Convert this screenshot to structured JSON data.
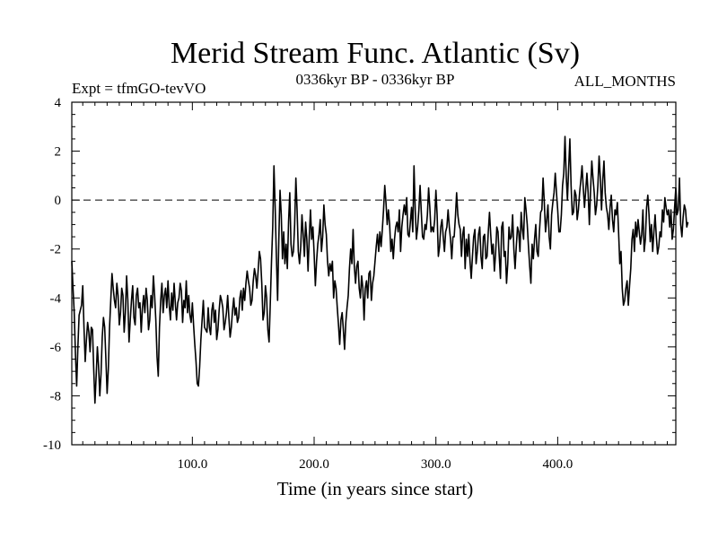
{
  "chart_data": {
    "type": "line",
    "title": "Merid Stream Func. Atlantic (Sv)",
    "subtitle_left": "Expt = tfmGO-tevVO",
    "subtitle_center": "0336kyr BP - 0336kyr BP",
    "subtitle_right": "ALL_MONTHS",
    "xlabel": "Time (in years since start)",
    "ylabel": "",
    "xlim": [
      1,
      497
    ],
    "ylim": [
      -10,
      4
    ],
    "x_ticks": [
      100,
      200,
      300,
      400
    ],
    "x_tick_labels": [
      "100.0",
      "200.0",
      "300.0",
      "400.0"
    ],
    "y_ticks": [
      4,
      2,
      0,
      -2,
      -4,
      -6,
      -8,
      -10
    ],
    "y_tick_labels": [
      "4",
      "2",
      "0",
      "-2",
      "-4",
      "-6",
      "-8",
      "-10"
    ],
    "reference_line": {
      "y": 0,
      "style": "dashed"
    },
    "series": [
      {
        "name": "Merid Stream Func. Atlantic",
        "x_start": 1,
        "x_step": 1,
        "values": [
          -2.5,
          -3.6,
          -4.6,
          -6.3,
          -7.6,
          -6.0,
          -4.7,
          -4.5,
          -4.3,
          -3.5,
          -5.2,
          -6.6,
          -5.7,
          -5.0,
          -5.4,
          -6.2,
          -5.2,
          -5.3,
          -6.9,
          -8.3,
          -7.2,
          -6.0,
          -6.8,
          -8.0,
          -7.1,
          -5.6,
          -4.8,
          -5.2,
          -6.5,
          -7.9,
          -6.9,
          -5.2,
          -4.1,
          -3.0,
          -3.6,
          -4.1,
          -4.4,
          -3.4,
          -3.9,
          -5.1,
          -4.6,
          -3.6,
          -3.9,
          -5.4,
          -4.6,
          -3.1,
          -4.1,
          -5.8,
          -4.9,
          -4.1,
          -3.5,
          -4.8,
          -5.1,
          -3.9,
          -3.6,
          -4.4,
          -4.2,
          -5.4,
          -4.4,
          -3.9,
          -4.6,
          -3.6,
          -4.1,
          -5.3,
          -4.9,
          -3.9,
          -4.4,
          -3.1,
          -3.9,
          -4.9,
          -6.4,
          -7.2,
          -5.2,
          -4.1,
          -3.4,
          -4.6,
          -3.9,
          -3.6,
          -4.4,
          -3.3,
          -4.3,
          -4.9,
          -3.8,
          -4.5,
          -3.4,
          -4.2,
          -4.9,
          -4.2,
          -4.0,
          -3.4,
          -3.7,
          -5.0,
          -4.1,
          -4.4,
          -3.3,
          -4.6,
          -3.9,
          -4.7,
          -5.0,
          -4.2,
          -5.1,
          -5.9,
          -6.6,
          -7.5,
          -7.6,
          -6.8,
          -5.7,
          -4.9,
          -4.1,
          -5.2,
          -5.3,
          -5.4,
          -4.4,
          -5.2,
          -5.5,
          -4.5,
          -4.2,
          -5.0,
          -4.5,
          -5.7,
          -5.3,
          -4.5,
          -3.9,
          -4.1,
          -4.4,
          -5.3,
          -5.0,
          -4.6,
          -3.9,
          -4.8,
          -5.6,
          -5.2,
          -4.5,
          -4.0,
          -4.7,
          -4.4,
          -5.0,
          -4.8,
          -4.0,
          -3.7,
          -4.5,
          -3.6,
          -4.1,
          -3.4,
          -2.9,
          -3.3,
          -3.6,
          -4.3,
          -4.1,
          -3.3,
          -2.8,
          -3.1,
          -3.6,
          -2.9,
          -2.1,
          -2.4,
          -3.4,
          -4.9,
          -4.6,
          -3.5,
          -4.0,
          -5.3,
          -5.8,
          -4.2,
          -2.5,
          -1.1,
          1.4,
          -0.3,
          -2.3,
          -4.1,
          -1.6,
          0.4,
          -0.6,
          -2.4,
          -1.3,
          -2.6,
          -1.8,
          -2.8,
          -0.9,
          0.3,
          -1.8,
          -2.3,
          -2.1,
          -1.0,
          0.9,
          -0.4,
          -2.1,
          -2.6,
          -1.9,
          -0.6,
          -1.4,
          -2.3,
          -0.9,
          -1.6,
          -2.9,
          -1.5,
          -0.4,
          -1.6,
          -1.1,
          -2.2,
          -3.5,
          -2.5,
          -1.8,
          -1.4,
          -0.8,
          -2.1,
          -1.5,
          -0.2,
          -1.0,
          -1.4,
          -2.5,
          -3.1,
          -2.6,
          -2.9,
          -2.5,
          -4.0,
          -3.3,
          -3.6,
          -4.4,
          -5.1,
          -5.9,
          -4.9,
          -4.6,
          -5.3,
          -6.1,
          -5.0,
          -4.4,
          -3.9,
          -2.8,
          -2.0,
          -2.6,
          -1.2,
          -2.7,
          -3.4,
          -2.7,
          -2.5,
          -3.6,
          -4.0,
          -3.1,
          -3.6,
          -4.9,
          -3.6,
          -3.3,
          -4.0,
          -3.0,
          -2.9,
          -4.1,
          -3.4,
          -3.1,
          -2.5,
          -1.9,
          -1.4,
          -2.1,
          -1.3,
          -1.9,
          -1.2,
          -0.4,
          0.6,
          -0.1,
          -1.0,
          -0.4,
          -1.0,
          -2.1,
          -1.6,
          -2.4,
          -1.6,
          -1.1,
          -0.9,
          -1.3,
          -0.4,
          -2.1,
          -1.1,
          -0.6,
          -0.2,
          -0.6,
          0.1,
          -1.4,
          -1.5,
          -0.9,
          -0.3,
          -1.3,
          1.4,
          -0.4,
          -1.6,
          -1.1,
          -0.4,
          0.6,
          -0.5,
          -1.5,
          -1.6,
          -1.0,
          -1.2,
          -0.6,
          0.5,
          -0.3,
          -1.3,
          -1.1,
          -1.3,
          -0.8,
          0.4,
          -0.6,
          -2.3,
          -1.9,
          -1.1,
          -0.8,
          -1.5,
          -2.1,
          -1.3,
          -1.1,
          -0.4,
          -1.1,
          -1.6,
          -2.4,
          -1.5,
          -1.5,
          -0.7,
          0.3,
          -0.6,
          -1.0,
          -1.2,
          -2.3,
          -1.4,
          -1.1,
          -2.8,
          -1.6,
          -2.3,
          -1.4,
          -2.5,
          -3.2,
          -2.3,
          -1.5,
          -1.2,
          -2.6,
          -2.1,
          -1.4,
          -1.1,
          -2.3,
          -2.8,
          -1.5,
          -1.4,
          -2.4,
          -2.3,
          -1.3,
          -0.5,
          -1.4,
          -2.2,
          -1.8,
          -2.9,
          -2.2,
          -1.1,
          -1.3,
          -2.3,
          -3.2,
          -1.1,
          -0.9,
          -2.3,
          -2.1,
          -3.4,
          -2.6,
          -1.1,
          -1.6,
          -1.5,
          -0.6,
          -2.0,
          -2.8,
          -1.9,
          -1.1,
          -1.3,
          -2.1,
          -0.5,
          -1.2,
          -1.6,
          0.1,
          -0.4,
          -1.0,
          -1.9,
          -2.7,
          -3.4,
          -1.8,
          -2.4,
          -1.6,
          -1.0,
          -2.1,
          -2.3,
          -1.3,
          -0.5,
          -0.4,
          0.9,
          -0.1,
          -1.3,
          -0.8,
          -0.2,
          -1.5,
          -2.0,
          -0.6,
          -0.1,
          0.3,
          1.1,
          0.3,
          -0.4,
          -1.3,
          -1.3,
          -0.6,
          0.6,
          1.1,
          2.6,
          1.0,
          0.0,
          1.3,
          2.5,
          0.6,
          -0.6,
          -0.5,
          0.4,
          0.2,
          -0.8,
          -0.4,
          0.3,
          0.8,
          1.4,
          0.5,
          -0.3,
          0.4,
          1.1,
          0.3,
          -1.0,
          0.4,
          1.6,
          0.9,
          0.3,
          -0.6,
          -0.2,
          0.6,
          1.8,
          0.9,
          -0.4,
          0.8,
          1.6,
          0.3,
          -0.3,
          -0.6,
          -1.2,
          -0.3,
          0.2,
          -0.8,
          -1.3,
          -0.4,
          -0.6,
          -0.1,
          -1.3,
          -2.6,
          -2.1,
          -3.6,
          -4.3,
          -4.1,
          -3.6,
          -3.3,
          -4.3,
          -3.5,
          -2.8,
          -1.6,
          -1.2,
          -2.1,
          -0.9,
          -1.5,
          -0.8,
          -1.3,
          -1.8,
          -1.4,
          -0.4,
          -2.1,
          -1.6,
          -0.3,
          0.2,
          -0.6,
          -1.7,
          -1.0,
          -2.1,
          -1.3,
          -0.6,
          -1.5,
          -2.2,
          -1.9,
          -1.3,
          -1.5,
          -0.4,
          -0.9,
          0.1,
          -0.3,
          -0.6,
          -0.4,
          -1.1,
          -0.4,
          -1.6,
          -1.2,
          -0.3,
          0.5,
          -0.6,
          -0.4,
          0.9,
          -1.0,
          -1.5,
          -0.7,
          -0.2,
          -0.4,
          -1.1,
          -0.9
        ]
      }
    ]
  }
}
